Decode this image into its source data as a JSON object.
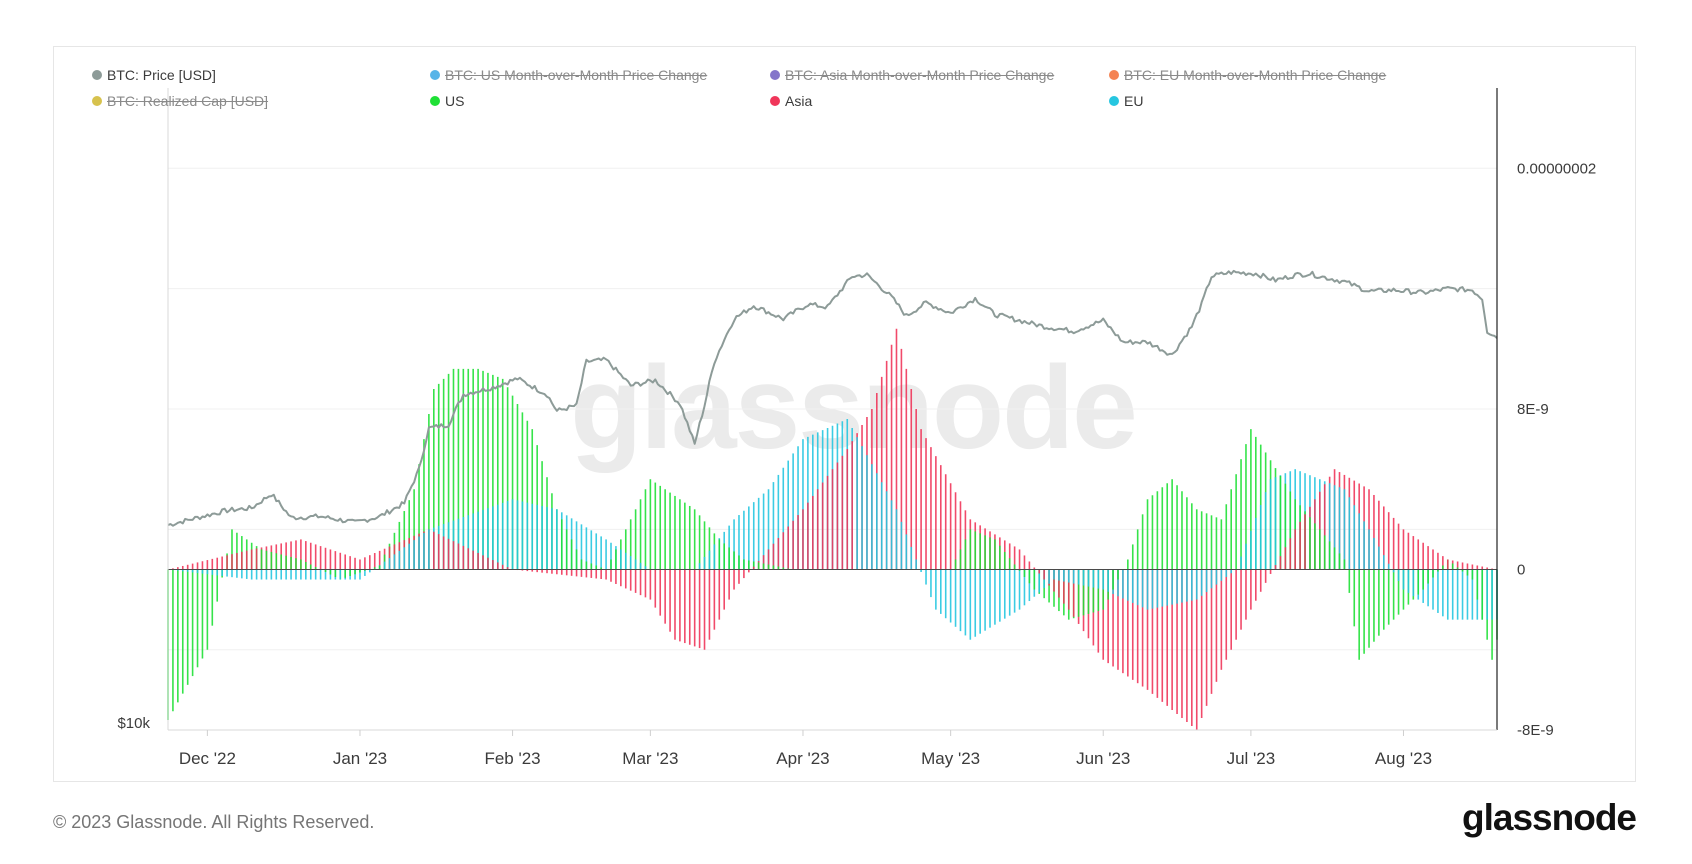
{
  "legend": [
    {
      "label": "BTC: Price [USD]",
      "color": "#8d9b98",
      "active": true
    },
    {
      "label": "BTC: US Month-over-Month Price Change",
      "color": "#1f9be0",
      "active": false
    },
    {
      "label": "BTC: Asia Month-over-Month Price Change",
      "color": "#5b47b8",
      "active": false
    },
    {
      "label": "BTC: EU Month-over-Month Price Change",
      "color": "#f05a1a",
      "active": false
    },
    {
      "label": "BTC: Realized Cap [USD]",
      "color": "#c9ad12",
      "active": false
    },
    {
      "label": "US",
      "color": "#1fe036",
      "active": true
    },
    {
      "label": "Asia",
      "color": "#f0365a",
      "active": true
    },
    {
      "label": "EU",
      "color": "#26c6e0",
      "active": true
    }
  ],
  "watermark": "glassnode",
  "footer": {
    "copyright": "© 2023 Glassnode. All Rights Reserved.",
    "brand": "glassnode"
  },
  "chart_data": {
    "type": "bar",
    "title": "",
    "x_ticks": [
      "Dec '22",
      "Jan '23",
      "Feb '23",
      "Mar '23",
      "Apr '23",
      "May '23",
      "Jun '23",
      "Jul '23",
      "Aug '23"
    ],
    "left_axis": {
      "label": "$10k",
      "scale": "log"
    },
    "right_axis": {
      "ticks": [
        "0.00000002",
        "8E-9",
        "0",
        "-8E-9"
      ],
      "values": [
        2e-08,
        8e-09,
        0,
        -8e-09
      ],
      "range": [
        -8e-09,
        2.4e-08
      ]
    },
    "date_range": [
      "2022-11-23",
      "2023-08-20"
    ],
    "price_series": {
      "name": "BTC: Price [USD]",
      "color": "#8d9b98",
      "dates": [
        "2022-11-23",
        "2022-12-01",
        "2022-12-05",
        "2022-12-10",
        "2022-12-14",
        "2022-12-18",
        "2022-12-24",
        "2022-12-31",
        "2023-01-05",
        "2023-01-10",
        "2023-01-13",
        "2023-01-15",
        "2023-01-19",
        "2023-01-22",
        "2023-01-28",
        "2023-02-02",
        "2023-02-08",
        "2023-02-10",
        "2023-02-14",
        "2023-02-16",
        "2023-02-20",
        "2023-02-25",
        "2023-03-02",
        "2023-03-07",
        "2023-03-10",
        "2023-03-12",
        "2023-03-14",
        "2023-03-18",
        "2023-03-22",
        "2023-03-28",
        "2023-04-02",
        "2023-04-06",
        "2023-04-11",
        "2023-04-14",
        "2023-04-19",
        "2023-04-22",
        "2023-04-26",
        "2023-05-01",
        "2023-05-06",
        "2023-05-10",
        "2023-05-15",
        "2023-05-20",
        "2023-05-26",
        "2023-06-01",
        "2023-06-05",
        "2023-06-10",
        "2023-06-15",
        "2023-06-19",
        "2023-06-21",
        "2023-06-23",
        "2023-06-27",
        "2023-07-02",
        "2023-07-06",
        "2023-07-10",
        "2023-07-13",
        "2023-07-15",
        "2023-07-20",
        "2023-07-25",
        "2023-07-30",
        "2023-08-05",
        "2023-08-10",
        "2023-08-15",
        "2023-08-17",
        "2023-08-18",
        "2023-08-20"
      ],
      "values": [
        16500,
        16900,
        17100,
        17200,
        17800,
        16800,
        16850,
        16600,
        16850,
        17400,
        18900,
        20900,
        21100,
        22700,
        23100,
        23600,
        22700,
        21800,
        22100,
        24600,
        24700,
        23200,
        23500,
        22200,
        20100,
        22100,
        24600,
        27300,
        28200,
        27300,
        28300,
        28100,
        30300,
        30400,
        28800,
        27500,
        28400,
        27700,
        28700,
        27600,
        27200,
        26800,
        26500,
        27200,
        25800,
        25800,
        25000,
        26800,
        28300,
        30300,
        30600,
        30500,
        30000,
        30400,
        30500,
        30300,
        29900,
        29200,
        29300,
        29100,
        29400,
        29300,
        28700,
        26500,
        26100
      ]
    },
    "bar_series": [
      {
        "name": "US",
        "color": "#1fe036",
        "dates": [
          "2022-11-23",
          "2022-12-01",
          "2022-12-06",
          "2022-12-12",
          "2022-12-20",
          "2022-12-28",
          "2023-01-05",
          "2023-01-12",
          "2023-01-16",
          "2023-01-20",
          "2023-01-25",
          "2023-01-30",
          "2023-02-05",
          "2023-02-10",
          "2023-02-15",
          "2023-02-20",
          "2023-03-01",
          "2023-03-10",
          "2023-03-15",
          "2023-03-20",
          "2023-03-30",
          "2023-04-10",
          "2023-04-20",
          "2023-05-01",
          "2023-05-05",
          "2023-05-10",
          "2023-05-18",
          "2023-05-25",
          "2023-06-01",
          "2023-06-06",
          "2023-06-10",
          "2023-06-15",
          "2023-06-20",
          "2023-06-25",
          "2023-07-01",
          "2023-07-10",
          "2023-07-20",
          "2023-07-23",
          "2023-07-28",
          "2023-08-05",
          "2023-08-10",
          "2023-08-15",
          "2023-08-19",
          "2023-08-20"
        ],
        "values": [
          -7.5e-09,
          -4e-09,
          2e-09,
          1e-09,
          5e-10,
          -5e-10,
          2e-10,
          4e-09,
          9e-09,
          1e-08,
          1e-08,
          9.5e-09,
          7e-09,
          3e-09,
          5e-10,
          0,
          4.5e-09,
          3e-09,
          1.5e-09,
          5e-10,
          0,
          0,
          0,
          0,
          2e-09,
          1.5e-09,
          -1e-09,
          -2.5e-09,
          -2e-09,
          5e-10,
          3.5e-09,
          4.5e-09,
          3e-09,
          2.5e-09,
          7e-09,
          3.5e-09,
          5e-10,
          -4.5e-09,
          -3e-09,
          -1e-09,
          5e-10,
          -5e-10,
          -4.5e-09,
          -3.5e-09
        ]
      },
      {
        "name": "Asia",
        "color": "#f0365a",
        "dates": [
          "2022-11-23",
          "2022-12-10",
          "2022-12-20",
          "2023-01-01",
          "2023-01-15",
          "2023-02-01",
          "2023-02-20",
          "2023-03-01",
          "2023-03-06",
          "2023-03-12",
          "2023-03-18",
          "2023-04-01",
          "2023-04-10",
          "2023-04-15",
          "2023-04-20",
          "2023-04-25",
          "2023-05-05",
          "2023-05-15",
          "2023-05-25",
          "2023-06-01",
          "2023-06-10",
          "2023-06-15",
          "2023-06-20",
          "2023-06-25",
          "2023-07-01",
          "2023-07-10",
          "2023-07-18",
          "2023-07-25",
          "2023-08-01",
          "2023-08-10",
          "2023-08-20"
        ],
        "values": [
          0,
          1e-09,
          1.5e-09,
          5e-10,
          2e-09,
          0,
          -5e-10,
          -1.5e-09,
          -3.5e-09,
          -4e-09,
          -1e-09,
          3e-09,
          6e-09,
          8e-09,
          1.2e-08,
          7e-09,
          2.5e-09,
          1e-09,
          -2e-09,
          -4.5e-09,
          -6e-09,
          -7e-09,
          -8e-09,
          -5e-09,
          -2e-09,
          2e-09,
          5e-09,
          4e-09,
          2e-09,
          5e-10,
          0
        ]
      },
      {
        "name": "EU",
        "color": "#26c6e0",
        "dates": [
          "2022-11-23",
          "2022-12-10",
          "2023-01-01",
          "2023-01-15",
          "2023-02-01",
          "2023-02-10",
          "2023-02-20",
          "2023-03-01",
          "2023-03-10",
          "2023-03-18",
          "2023-03-25",
          "2023-04-01",
          "2023-04-10",
          "2023-04-20",
          "2023-04-28",
          "2023-05-05",
          "2023-05-15",
          "2023-05-22",
          "2023-06-01",
          "2023-06-10",
          "2023-06-20",
          "2023-06-28",
          "2023-07-05",
          "2023-07-10",
          "2023-07-20",
          "2023-07-25",
          "2023-08-01",
          "2023-08-10",
          "2023-08-20"
        ],
        "values": [
          0,
          -5e-10,
          -5e-10,
          2e-09,
          3.5e-09,
          3e-09,
          1.5e-09,
          0,
          0,
          2.5e-09,
          4e-09,
          6.5e-09,
          7.5e-09,
          3e-09,
          -2e-09,
          -3.5e-09,
          -2e-09,
          -5e-10,
          -1e-09,
          -2e-09,
          -1.5e-09,
          0,
          4.5e-09,
          5e-09,
          4e-09,
          2e-09,
          -1e-09,
          -2.5e-09,
          -2.5e-09
        ]
      }
    ]
  }
}
